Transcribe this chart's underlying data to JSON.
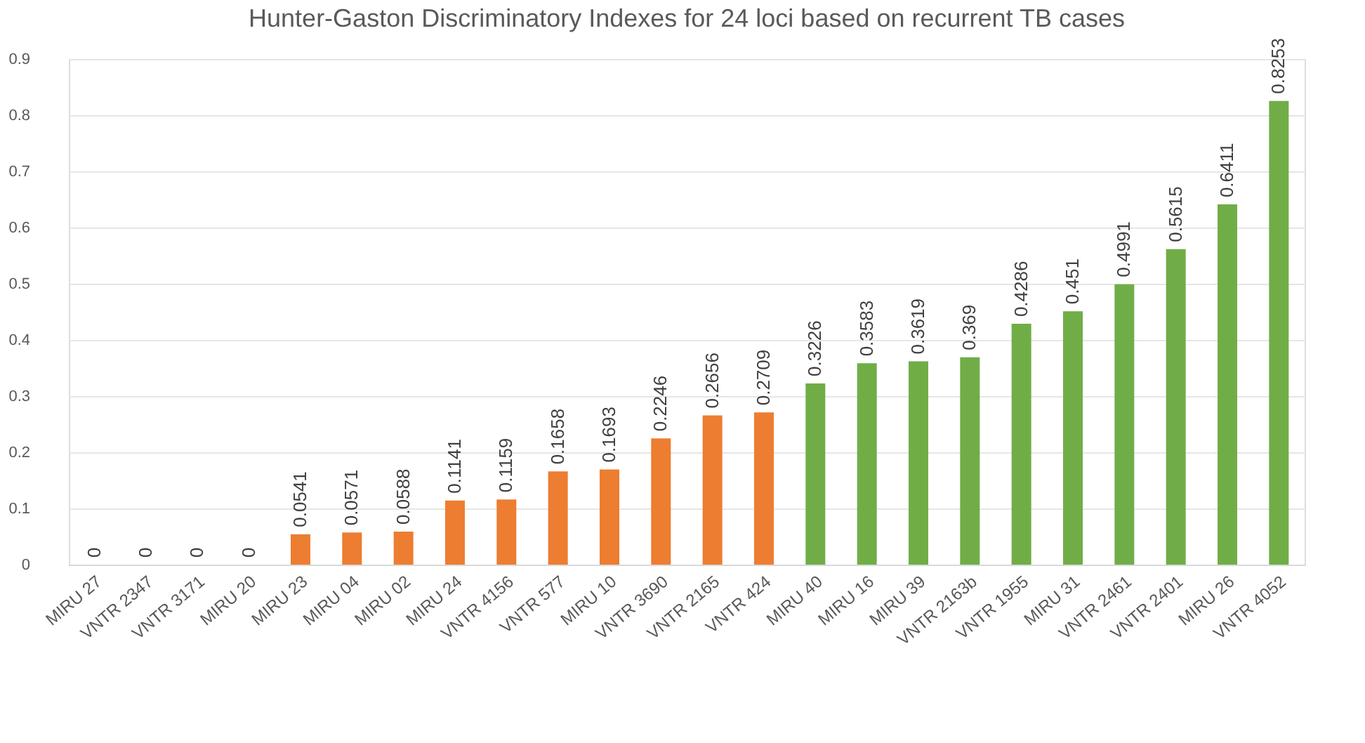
{
  "chart_data": {
    "type": "bar",
    "title": "Hunter-Gaston Discriminatory Indexes for 24 loci based on recurrent TB cases",
    "categories": [
      "MIRU 27",
      "VNTR 2347",
      "VNTR 3171",
      "MIRU 20",
      "MIRU 23",
      "MIRU 04",
      "MIRU 02",
      "MIRU 24",
      "VNTR 4156",
      "VNTR 577",
      "MIRU 10",
      "VNTR 3690",
      "VNTR 2165",
      "VNTR 424",
      "MIRU 40",
      "MIRU 16",
      "MIRU 39",
      "VNTR 2163b",
      "VNTR 1955",
      "MIRU 31",
      "VNTR 2461",
      "VNTR 2401",
      "MIRU 26",
      "VNTR 4052"
    ],
    "values": [
      0,
      0,
      0,
      0,
      0.0541,
      0.0571,
      0.0588,
      0.1141,
      0.1159,
      0.1658,
      0.1693,
      0.2246,
      0.2656,
      0.2709,
      0.3226,
      0.3583,
      0.3619,
      0.369,
      0.4286,
      0.451,
      0.4991,
      0.5615,
      0.6411,
      0.8253
    ],
    "colors": [
      "#ed7d31",
      "#ed7d31",
      "#ed7d31",
      "#ed7d31",
      "#ed7d31",
      "#ed7d31",
      "#ed7d31",
      "#ed7d31",
      "#ed7d31",
      "#ed7d31",
      "#ed7d31",
      "#ed7d31",
      "#ed7d31",
      "#ed7d31",
      "#70ad47",
      "#70ad47",
      "#70ad47",
      "#70ad47",
      "#70ad47",
      "#70ad47",
      "#70ad47",
      "#70ad47",
      "#70ad47",
      "#70ad47"
    ],
    "ylim": [
      0,
      0.9
    ],
    "yticks": [
      0,
      0.1,
      0.2,
      0.3,
      0.4,
      0.5,
      0.6,
      0.7,
      0.8,
      0.9
    ],
    "grid": "y",
    "data_labels": true
  }
}
